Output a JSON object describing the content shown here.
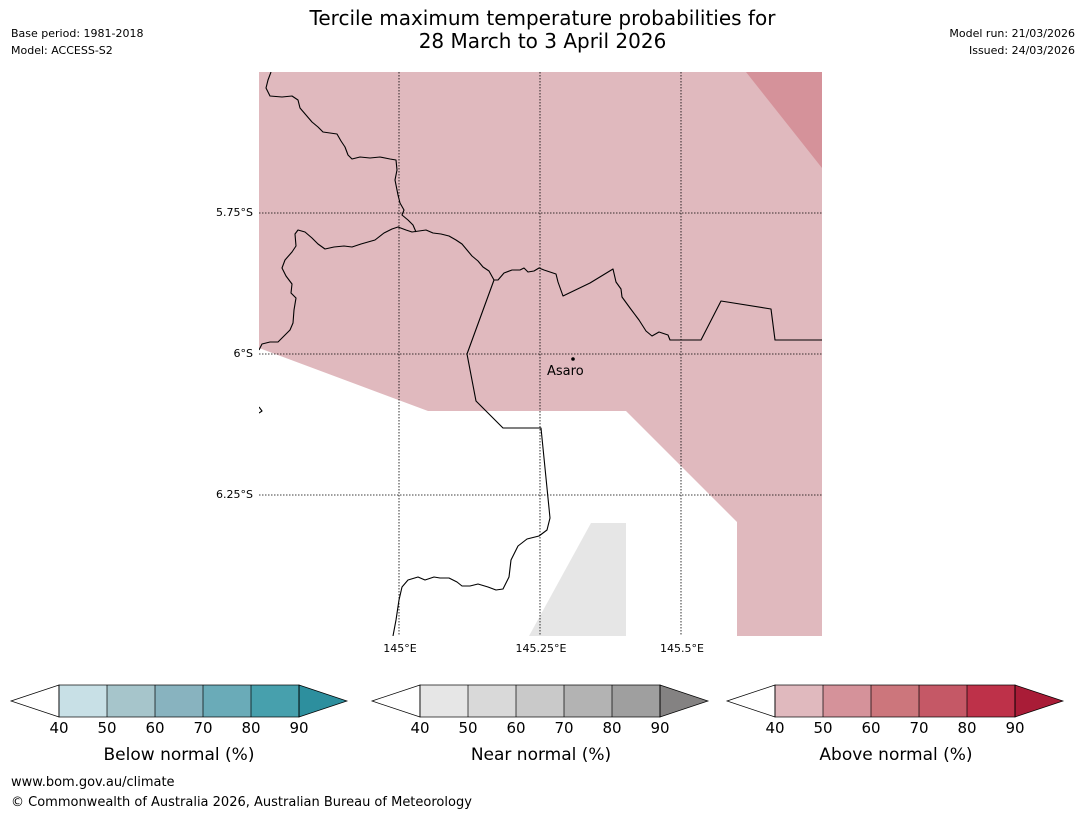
{
  "header": {
    "base_period": "Base period: 1981-2018",
    "model": "Model: ACCESS-S2",
    "title_line1": "Tercile maximum temperature probabilities for",
    "title_line2": "28 March to 3 April 2026",
    "model_run": "Model run: 21/03/2026",
    "issued": "Issued: 24/03/2026"
  },
  "map": {
    "latitude_labels": [
      "5.75°S",
      "6°S",
      "6.25°S"
    ],
    "longitude_labels": [
      "145°E",
      "145.25°E",
      "145.5°E"
    ],
    "place_label": "Asaro",
    "regions": [
      {
        "category": "above-normal",
        "probability_band": "40-50",
        "color": "#e0b9be"
      },
      {
        "category": "above-normal",
        "probability_band": "50-60",
        "color": "#d5929a"
      },
      {
        "category": "near-normal",
        "probability_band": "40-50",
        "color": "#e6e6e6"
      }
    ]
  },
  "colorbars": [
    {
      "name": "below-normal",
      "label": "Below normal (%)",
      "ticks": [
        "40",
        "50",
        "60",
        "70",
        "80",
        "90"
      ],
      "colors": [
        "#ffffff",
        "#c8e0e6",
        "#a6c5cb",
        "#88b3bf",
        "#6aabb8",
        "#47a0ad",
        "#2d8f9e"
      ]
    },
    {
      "name": "near-normal",
      "label": "Near normal (%)",
      "ticks": [
        "40",
        "50",
        "60",
        "70",
        "80",
        "90"
      ],
      "colors": [
        "#ffffff",
        "#e6e6e6",
        "#d9d9d9",
        "#c9c9c9",
        "#b3b3b3",
        "#9f9f9f",
        "#848282"
      ]
    },
    {
      "name": "above-normal",
      "label": "Above normal (%)",
      "ticks": [
        "40",
        "50",
        "60",
        "70",
        "80",
        "90"
      ],
      "colors": [
        "#ffffff",
        "#e0b9be",
        "#d5929a",
        "#cc767c",
        "#c55866",
        "#be3149",
        "#a91c37"
      ]
    }
  ],
  "footer": {
    "website": "www.bom.gov.au/climate",
    "copyright": "© Commonwealth of Australia 2026, Australian Bureau of Meteorology"
  }
}
